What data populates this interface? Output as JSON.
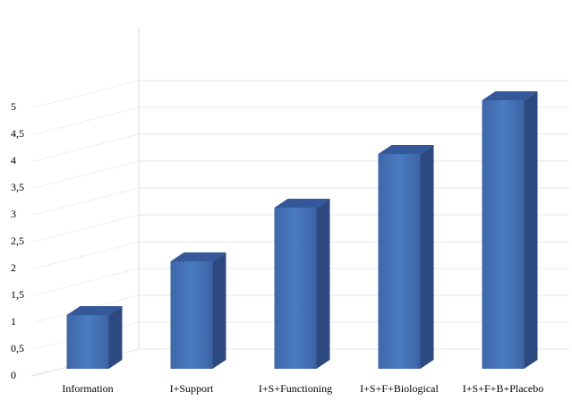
{
  "chart_data": {
    "type": "bar3d",
    "categories": [
      "Information",
      "I+Support",
      "I+S+Functioning",
      "I+S+F+Biological",
      "I+S+F+B+Placebo"
    ],
    "values": [
      1,
      2,
      3,
      4,
      5
    ],
    "color": "#4673b8",
    "ylim": [
      0,
      6
    ],
    "grid": true,
    "yticks": [
      0,
      {
        "value": 0.5,
        "label": "0,5"
      },
      1,
      {
        "value": 1.5,
        "label": "1,5"
      },
      2,
      {
        "value": 2.5,
        "label": "2,5"
      },
      3,
      {
        "value": 3.5,
        "label": "3,5"
      },
      4,
      {
        "value": 4.5,
        "label": "4,5"
      },
      5
    ]
  }
}
